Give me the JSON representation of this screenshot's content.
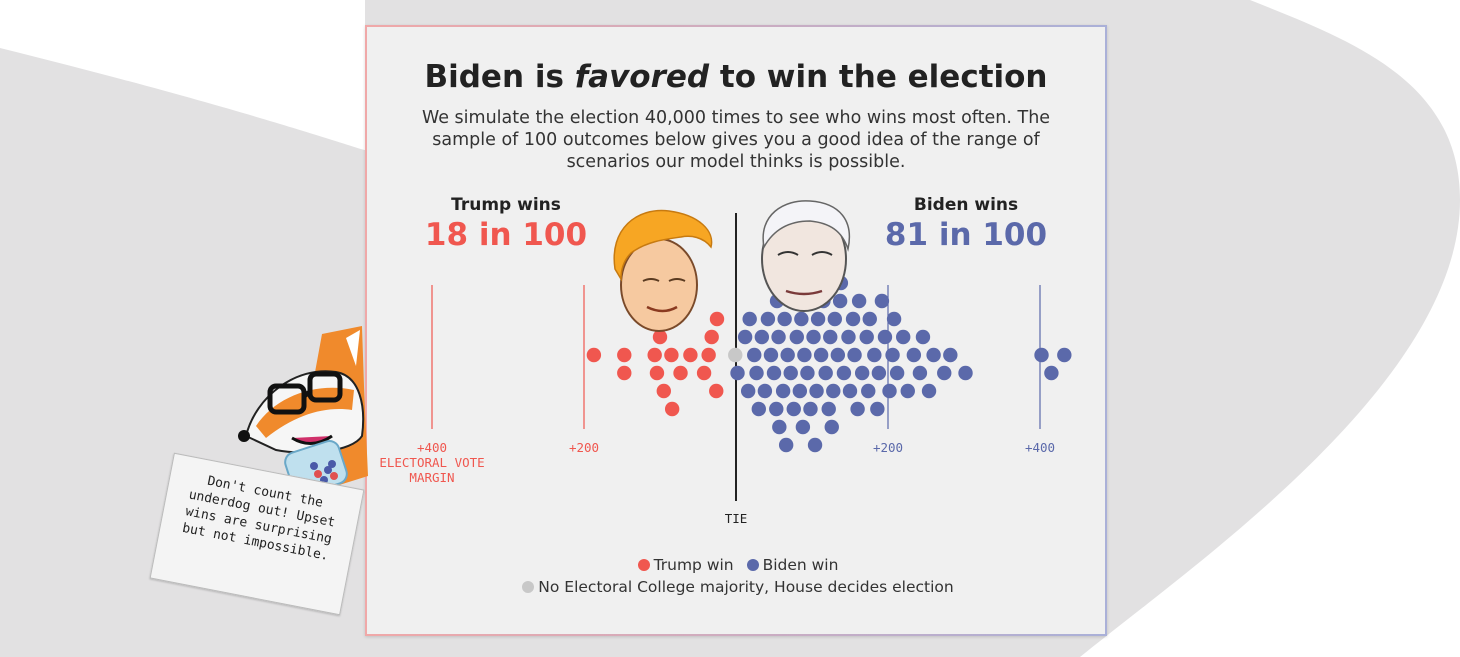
{
  "title_before": "Biden is ",
  "title_emph": "favored",
  "title_after": " to win the election",
  "subtitle": "We simulate the election 40,000 times to see who wins most often. The sample of 100 outcomes below gives you a good idea of the range of scenarios our model thinks is possible.",
  "trump": {
    "label": "Trump wins",
    "count": "18 in 100"
  },
  "biden": {
    "label": "Biden wins",
    "count": "81 in 100"
  },
  "colors": {
    "trump": "#f0574f",
    "biden": "#5b69aa",
    "house": "#c8c8c8",
    "tie_line": "#222222"
  },
  "legend": {
    "trump": "Trump win",
    "biden": "Biden win",
    "house": "No Electoral College majority, House decides election"
  },
  "note": "Don't count the underdog out! Upset wins are surprising but not impossible.",
  "chart_data": {
    "type": "scatter",
    "description_axis": "electoral vote margin",
    "x_axis_labels": [
      {
        "value": -400,
        "text": "+400",
        "side": "trump"
      },
      {
        "value": -200,
        "text": "+200",
        "side": "trump"
      },
      {
        "value": 200,
        "text": "+200",
        "side": "biden"
      },
      {
        "value": 400,
        "text": "+400",
        "side": "biden"
      }
    ],
    "axis_title": "ELECTORAL VOTE MARGIN",
    "center_label": "TIE",
    "xlim": [
      -400,
      420
    ],
    "series": [
      {
        "name": "Trump win",
        "color": "#f0574f",
        "margins": [
          -187,
          -147,
          -147,
          -107,
          -104,
          -100,
          -95,
          -92,
          -85,
          -84,
          -83,
          -73,
          -60,
          -42,
          -36,
          -32,
          -26,
          -25
        ]
      },
      {
        "name": "Biden win",
        "color": "#5b69aa",
        "margins": [
          0,
          10,
          14,
          16,
          22,
          25,
          28,
          32,
          36,
          40,
          44,
          48,
          51,
          52,
          54,
          55,
          56,
          60,
          62,
          64,
          66,
          70,
          72,
          74,
          78,
          81,
          82,
          84,
          86,
          88,
          92,
          94,
          96,
          100,
          102,
          104,
          106,
          110,
          113,
          116,
          120,
          122,
          124,
          126,
          128,
          132,
          135,
          136,
          140,
          146,
          148,
          152,
          154,
          158,
          160,
          164,
          170,
          172,
          174,
          180,
          184,
          186,
          190,
          194,
          200,
          204,
          206,
          210,
          218,
          224,
          232,
          240,
          244,
          252,
          258,
          272,
          280,
          300,
          400,
          413,
          430
        ]
      },
      {
        "name": "No Electoral College majority, House decides election",
        "color": "#c8c8c8",
        "margins": [
          0
        ]
      }
    ]
  }
}
